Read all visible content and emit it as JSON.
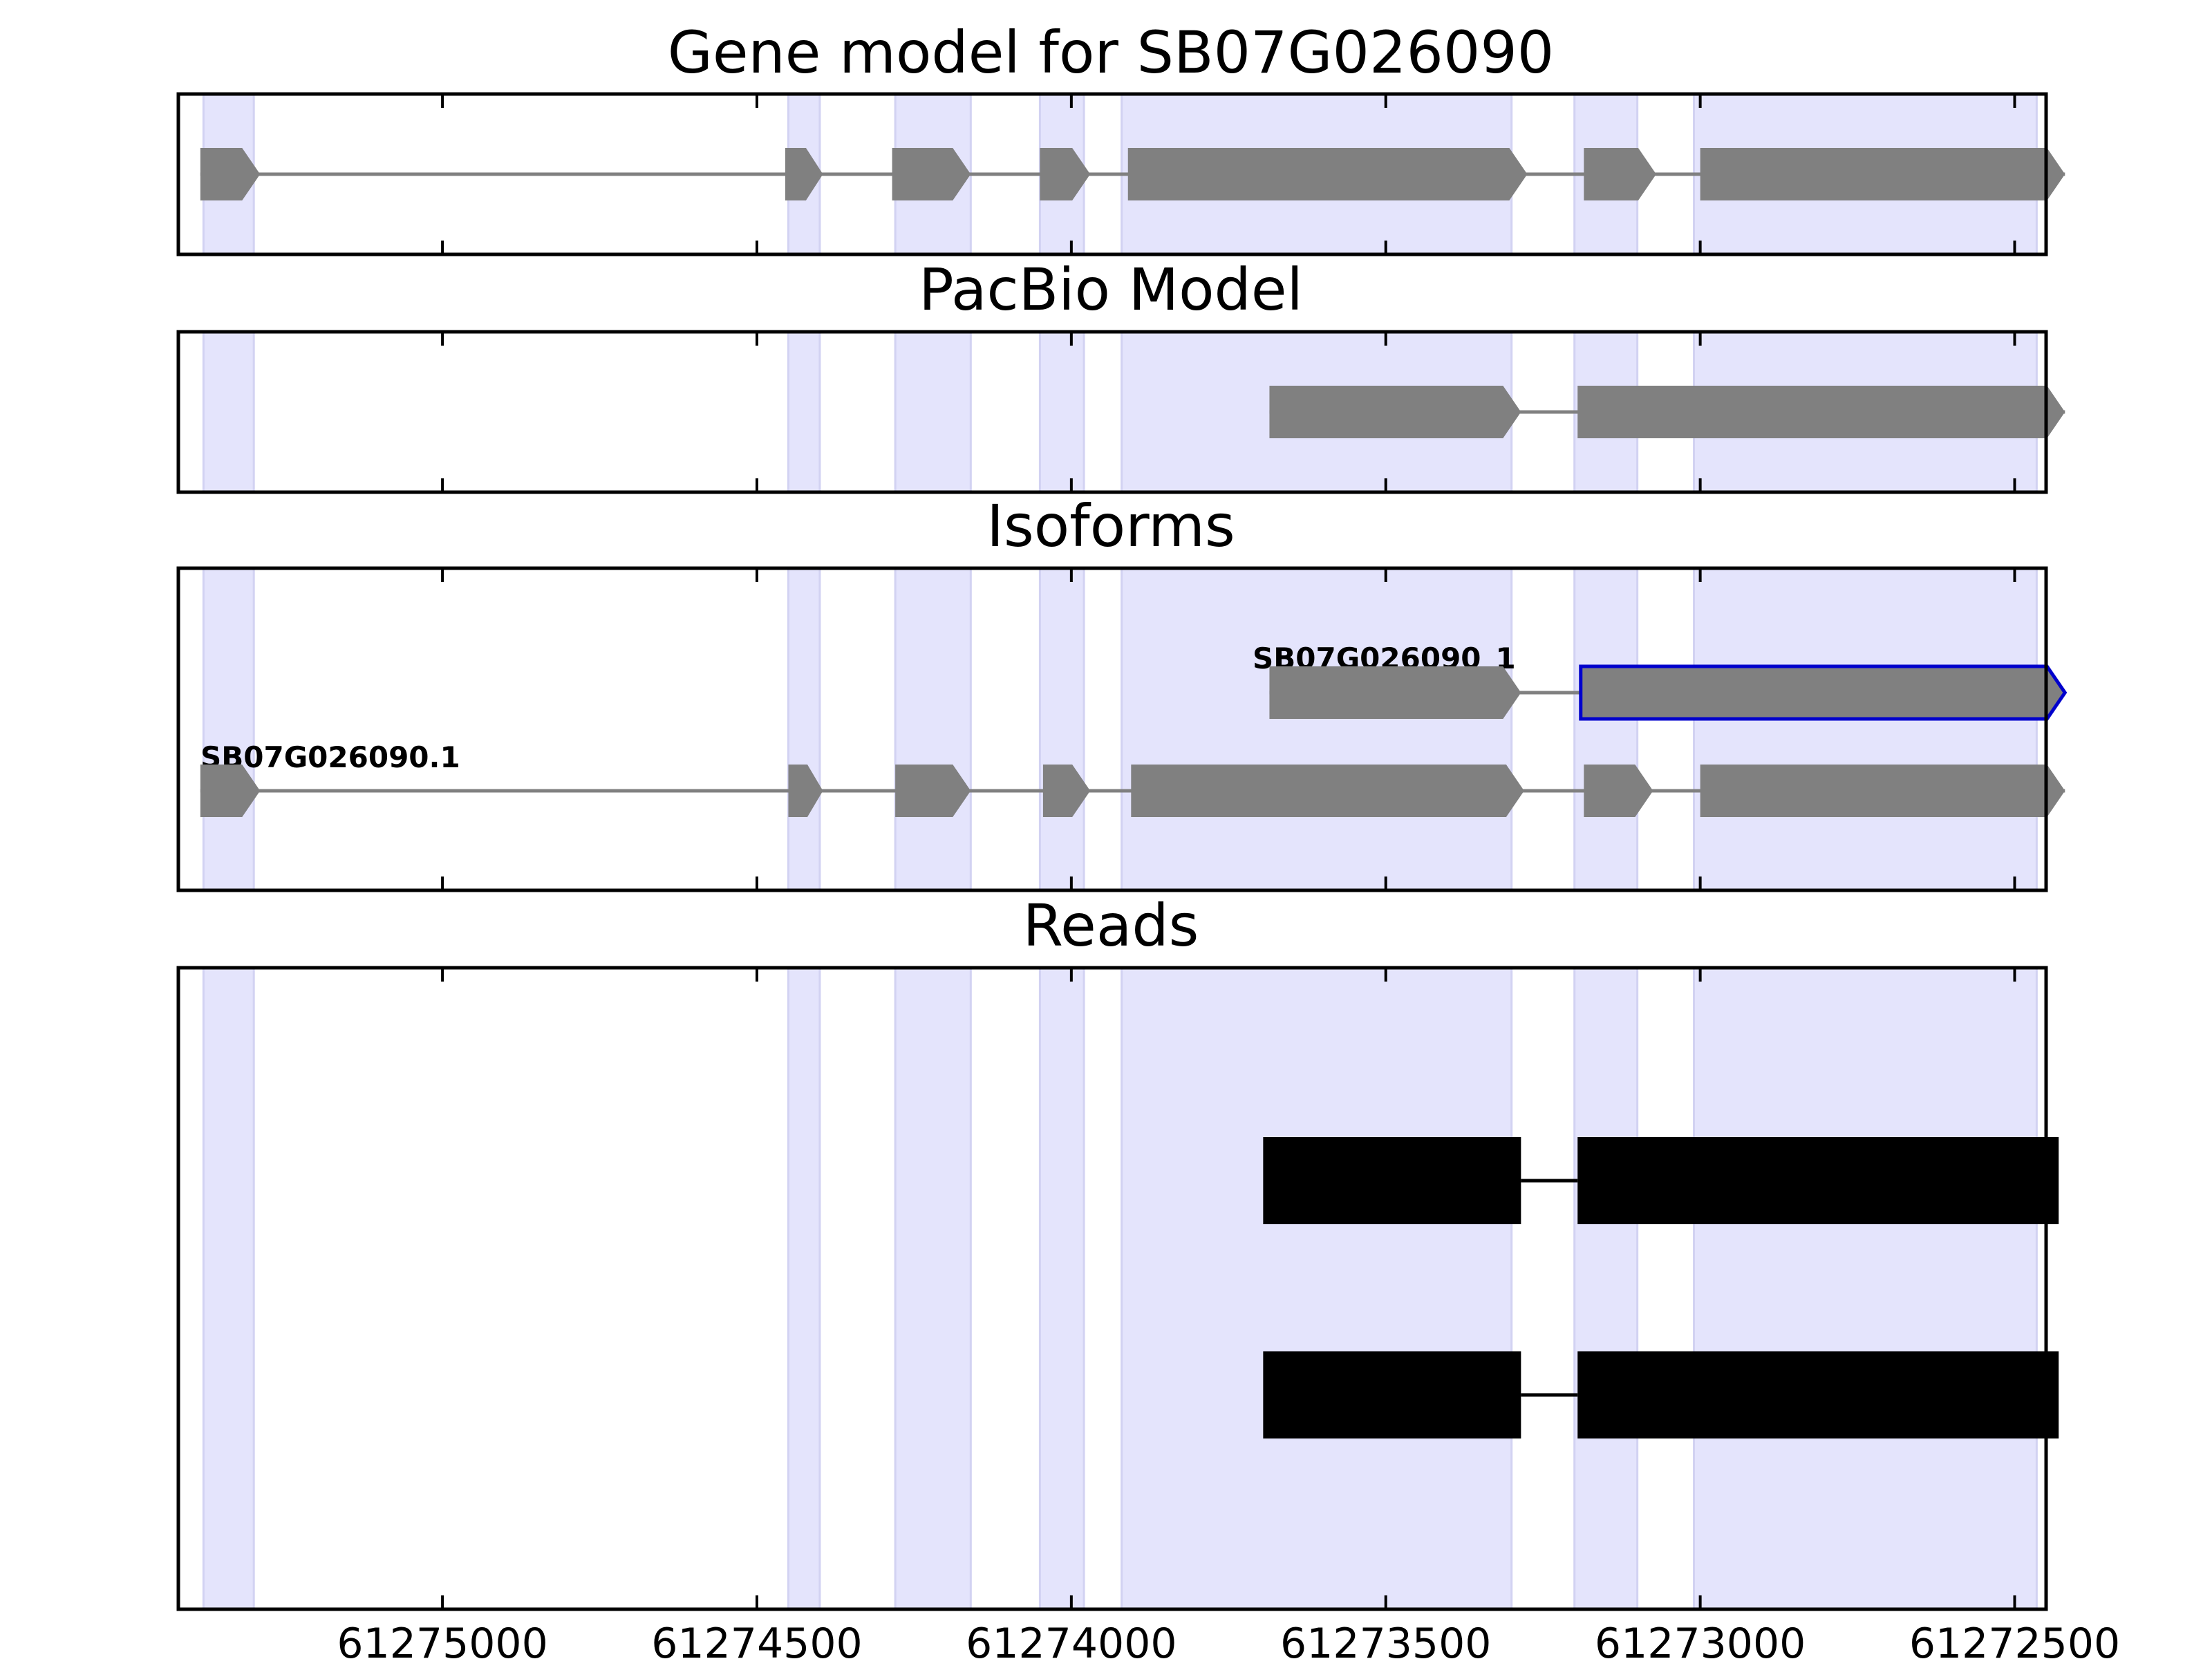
{
  "chart_data": {
    "type": "gene-model",
    "x_axis": {
      "range": [
        61275420,
        61272450
      ],
      "reversed": true,
      "ticks": [
        61275000,
        61274500,
        61274000,
        61273500,
        61273000,
        61272500
      ],
      "tick_labels": [
        "61275000",
        "61274500",
        "61274000",
        "61273500",
        "61273000",
        "61272500"
      ]
    },
    "colors": {
      "exon": "#808080",
      "intron": "#808080",
      "read": "#000000",
      "highlight_fill": "#e4e4fc",
      "highlight_edge": "#d2d2f2",
      "selected_outline": "#0000cc"
    },
    "exon_highlights": [
      [
        61275380,
        61275300
      ],
      [
        61274450,
        61274400
      ],
      [
        61274280,
        61274160
      ],
      [
        61274050,
        61273980
      ],
      [
        61273920,
        61273300
      ],
      [
        61273200,
        61273100
      ],
      [
        61273010,
        61272465
      ]
    ],
    "panels": [
      {
        "title": "Gene model for SB07G026090",
        "tracks": [
          {
            "label": "",
            "selected": false,
            "exons": [
              [
                61275385,
                61275290
              ],
              [
                61274455,
                61274395
              ],
              [
                61274285,
                61274160
              ],
              [
                61274050,
                61273970
              ],
              [
                61273910,
                61273275
              ],
              [
                61273185,
                61273070
              ],
              [
                61273000,
                61272420
              ]
            ]
          }
        ]
      },
      {
        "title": "PacBio Model",
        "tracks": [
          {
            "label": "",
            "selected": false,
            "exons": [
              [
                61273685,
                61273285
              ],
              [
                61273195,
                61272420
              ]
            ]
          }
        ]
      },
      {
        "title": "Isoforms",
        "tracks": [
          {
            "label": "SB07G026090.1",
            "selected": false,
            "exons": [
              [
                61275385,
                61275290
              ],
              [
                61274450,
                61274395
              ],
              [
                61274280,
                61274160
              ],
              [
                61274045,
                61273970
              ],
              [
                61273905,
                61273280
              ],
              [
                61273185,
                61273075
              ],
              [
                61273000,
                61272420
              ]
            ]
          },
          {
            "label": "SB07G026090_1",
            "selected": true,
            "exons": [
              [
                61273685,
                61273285
              ],
              [
                61273190,
                61272420
              ]
            ]
          }
        ]
      },
      {
        "title": "Reads",
        "reads": [
          {
            "blocks": [
              [
                61273695,
                61273285
              ],
              [
                61273195,
                61272430
              ]
            ]
          },
          {
            "blocks": [
              [
                61273695,
                61273285
              ],
              [
                61273195,
                61272430
              ]
            ]
          }
        ]
      }
    ]
  }
}
